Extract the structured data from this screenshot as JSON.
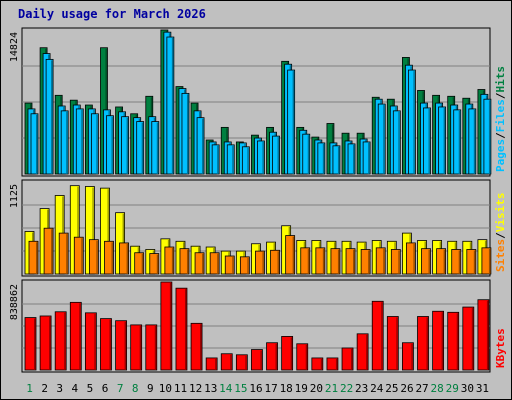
{
  "window": {
    "title": "Daily usage for March 2026"
  },
  "colors": {
    "frame_bg": "#c0c0c0",
    "hits": "#008040",
    "files": "#00c0ff",
    "pages": "#00c0ff",
    "visits": "#ffff00",
    "sites": "#ff8000",
    "kbytes": "#ff0000",
    "weekend_day": "#008040",
    "weekday_day": "#000000",
    "title": "#0000a0"
  },
  "chart_data": [
    {
      "type": "bar",
      "panel": "hits-files-pages",
      "ymax_label": "14824",
      "ylim": [
        0,
        14824
      ],
      "side_labels": [
        "Pages",
        "Files",
        "Hits"
      ],
      "categories": [
        "1",
        "2",
        "3",
        "4",
        "5",
        "6",
        "7",
        "8",
        "9",
        "10",
        "11",
        "12",
        "13",
        "14",
        "15",
        "16",
        "17",
        "18",
        "19",
        "20",
        "21",
        "22",
        "23",
        "24",
        "25",
        "26",
        "27",
        "28",
        "29",
        "30",
        "31"
      ],
      "series": [
        {
          "name": "Hits",
          "values": [
            7300,
            13000,
            8100,
            7600,
            7100,
            13000,
            6900,
            6200,
            8000,
            14824,
            9000,
            7300,
            3500,
            4800,
            3300,
            4000,
            4800,
            11600,
            4800,
            3800,
            5200,
            4200,
            4200,
            7900,
            7700,
            12000,
            8600,
            8100,
            8000,
            7800,
            8700
          ]
        },
        {
          "name": "Files",
          "values": [
            6700,
            12400,
            7000,
            7100,
            6700,
            6600,
            6400,
            5800,
            5900,
            14600,
            8800,
            6500,
            3300,
            3300,
            3200,
            3700,
            4300,
            11300,
            4500,
            3500,
            3200,
            3400,
            3600,
            7700,
            7000,
            11200,
            7300,
            7300,
            7100,
            7200,
            8200
          ]
        },
        {
          "name": "Pages",
          "values": [
            6200,
            11800,
            6500,
            6700,
            6200,
            6000,
            5900,
            5400,
            5400,
            14100,
            8300,
            5800,
            3000,
            3000,
            2800,
            3400,
            3900,
            10700,
            4100,
            3200,
            2900,
            3100,
            3300,
            7200,
            6500,
            10700,
            6800,
            6900,
            6600,
            6700,
            7700
          ]
        }
      ]
    },
    {
      "type": "bar",
      "panel": "visits-sites",
      "ymax_label": "1125",
      "ylim": [
        0,
        1125
      ],
      "side_labels": [
        "Sites",
        "Visits"
      ],
      "categories": [
        "1",
        "2",
        "3",
        "4",
        "5",
        "6",
        "7",
        "8",
        "9",
        "10",
        "11",
        "12",
        "13",
        "14",
        "15",
        "16",
        "17",
        "18",
        "19",
        "20",
        "21",
        "22",
        "23",
        "24",
        "25",
        "26",
        "27",
        "28",
        "29",
        "30",
        "31"
      ],
      "series": [
        {
          "name": "Visits",
          "values": [
            520,
            800,
            960,
            1080,
            1070,
            1050,
            750,
            340,
            300,
            430,
            400,
            340,
            330,
            280,
            280,
            370,
            390,
            590,
            410,
            410,
            400,
            400,
            390,
            410,
            400,
            500,
            410,
            410,
            400,
            400,
            420
          ]
        },
        {
          "name": "Sites",
          "values": [
            400,
            560,
            500,
            450,
            420,
            400,
            380,
            260,
            250,
            330,
            310,
            260,
            260,
            220,
            210,
            280,
            290,
            470,
            320,
            320,
            310,
            310,
            300,
            320,
            300,
            380,
            310,
            310,
            300,
            300,
            320
          ]
        }
      ]
    },
    {
      "type": "bar",
      "panel": "kbytes",
      "ymax_label": "838862",
      "ylim": [
        0,
        838862
      ],
      "side_labels": [
        "KBytes"
      ],
      "categories": [
        "1",
        "2",
        "3",
        "4",
        "5",
        "6",
        "7",
        "8",
        "9",
        "10",
        "11",
        "12",
        "13",
        "14",
        "15",
        "16",
        "17",
        "18",
        "19",
        "20",
        "21",
        "22",
        "23",
        "24",
        "25",
        "26",
        "27",
        "28",
        "29",
        "30",
        "31"
      ],
      "series": [
        {
          "name": "KBytes",
          "values": [
            500000,
            515000,
            555000,
            645000,
            545000,
            490000,
            470000,
            430000,
            430000,
            838862,
            780000,
            445000,
            115000,
            155000,
            145000,
            195000,
            260000,
            320000,
            250000,
            115000,
            115000,
            210000,
            345000,
            655000,
            510000,
            260000,
            510000,
            560000,
            550000,
            600000,
            670000
          ]
        }
      ]
    }
  ],
  "x_axis": {
    "day_labels": [
      "1",
      "2",
      "3",
      "4",
      "5",
      "6",
      "7",
      "8",
      "9",
      "10",
      "11",
      "12",
      "13",
      "14",
      "15",
      "16",
      "17",
      "18",
      "19",
      "20",
      "21",
      "22",
      "23",
      "24",
      "25",
      "26",
      "27",
      "28",
      "29",
      "30",
      "31"
    ],
    "weekend_days": [
      "1",
      "7",
      "8",
      "14",
      "15",
      "21",
      "22",
      "28",
      "29"
    ]
  }
}
